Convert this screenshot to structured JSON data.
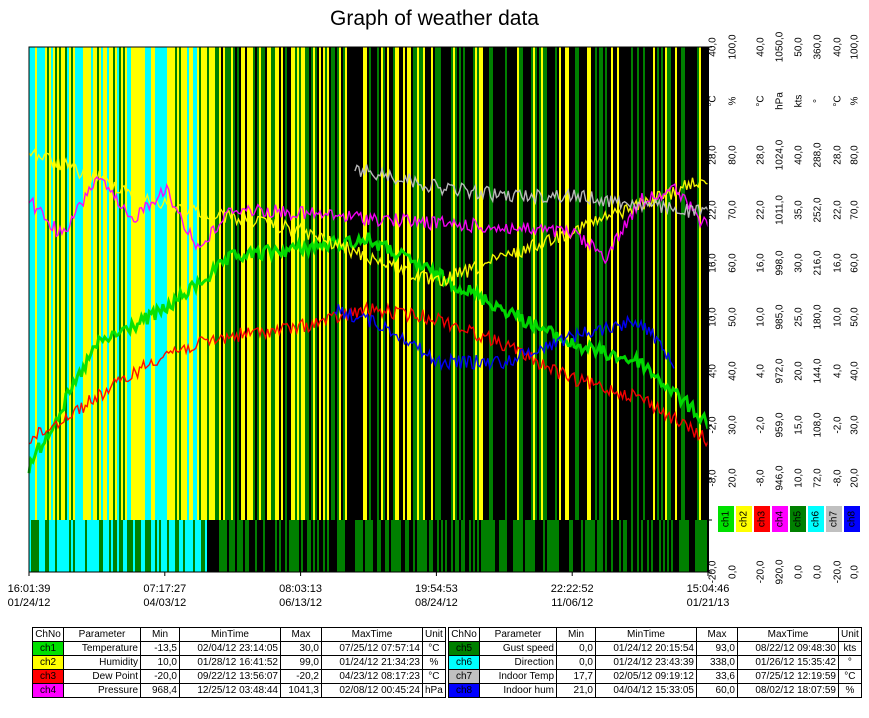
{
  "chart_data": {
    "type": "line",
    "title": "Graph of weather data",
    "x_ticks": [
      {
        "time": "16:01:39",
        "date": "01/24/12"
      },
      {
        "time": "07:17:27",
        "date": "04/03/12"
      },
      {
        "time": "08:03:13",
        "date": "06/13/12"
      },
      {
        "time": "19:54:53",
        "date": "08/24/12"
      },
      {
        "time": "22:22:52",
        "date": "11/06/12"
      },
      {
        "time": "15:04:46",
        "date": "01/21/13"
      }
    ],
    "axes": [
      {
        "unit": "°C",
        "ticks": [
          "40,0",
          "28,0",
          "22,0",
          "16,0",
          "10,0",
          "4,0",
          "-2,0",
          "-8,0",
          "",
          "-20,0"
        ]
      },
      {
        "unit": "%",
        "ticks": [
          "100,0",
          "80,0",
          "70,0",
          "60,0",
          "50,0",
          "40,0",
          "30,0",
          "20,0",
          "",
          "0,0"
        ]
      },
      {
        "unit": "°C",
        "ticks": [
          "40,0",
          "28,0",
          "22,0",
          "16,0",
          "10,0",
          "4,0",
          "-2,0",
          "-8,0",
          "",
          "-20,0"
        ]
      },
      {
        "unit": "hPa",
        "ticks": [
          "1050,0",
          "1024,0",
          "1011,0",
          "998,0",
          "985,0",
          "972,0",
          "959,0",
          "946,0",
          "",
          "920,0"
        ]
      },
      {
        "unit": "kts",
        "ticks": [
          "50,0",
          "40,0",
          "35,0",
          "30,0",
          "25,0",
          "20,0",
          "15,0",
          "10,0",
          "",
          "0,0"
        ]
      },
      {
        "unit": "°",
        "ticks": [
          "360,0",
          "288,0",
          "252,0",
          "216,0",
          "180,0",
          "144,0",
          "108,0",
          "72,0",
          "",
          "0,0"
        ]
      },
      {
        "unit": "°C",
        "ticks": [
          "40,0",
          "28,0",
          "22,0",
          "16,0",
          "10,0",
          "4,0",
          "-2,0",
          "-8,0",
          "",
          "-20,0"
        ]
      },
      {
        "unit": "%",
        "ticks": [
          "100,0",
          "80,0",
          "70,0",
          "60,0",
          "50,0",
          "40,0",
          "30,0",
          "20,0",
          "",
          "0,0"
        ]
      }
    ],
    "channel_tags": [
      {
        "label": "ch1",
        "color": "#00e000"
      },
      {
        "label": "ch2",
        "color": "#ffff00"
      },
      {
        "label": "ch3",
        "color": "#ff0000"
      },
      {
        "label": "ch4",
        "color": "#ff00ff"
      },
      {
        "label": "ch5",
        "color": "#008000"
      },
      {
        "label": "ch6",
        "color": "#00ffff"
      },
      {
        "label": "ch7",
        "color": "#c0c0c0"
      },
      {
        "label": "ch8",
        "color": "#0000ff"
      }
    ],
    "series": [
      {
        "name": "Temperature",
        "color": "#00e000",
        "approx_x_frac": [
          0,
          0.1,
          0.2,
          0.3,
          0.4,
          0.5,
          0.6,
          0.7,
          0.8,
          0.9,
          1
        ],
        "values": [
          -8,
          6,
          10,
          16,
          17,
          18,
          14,
          10,
          6,
          4,
          -3
        ]
      },
      {
        "name": "Humidity",
        "color": "#ffff00",
        "approx_x_frac": [
          0,
          0.2,
          0.4,
          0.6,
          0.8,
          1
        ],
        "values": [
          80,
          70,
          65,
          55,
          65,
          75
        ]
      },
      {
        "name": "Dew Point",
        "color": "#ff0000",
        "approx_x_frac": [
          0,
          0.1,
          0.2,
          0.3,
          0.4,
          0.5,
          0.6,
          0.7,
          0.8,
          0.9,
          1
        ],
        "values": [
          -5,
          0,
          5,
          7,
          8,
          10,
          9,
          6,
          2,
          0,
          -5
        ]
      },
      {
        "name": "Pressure",
        "color": "#ff00ff",
        "approx_x_frac": [
          0,
          0.05,
          0.1,
          0.15,
          0.2,
          0.25,
          0.3,
          0.8,
          0.85,
          0.9,
          0.95,
          1
        ],
        "values": [
          1012,
          1003,
          1018,
          1007,
          1015,
          1000,
          1010,
          1004,
          998,
          1012,
          1015,
          1005
        ]
      },
      {
        "name": "Indoor Temp",
        "color": "#c0c0c0",
        "approx_x_frac": [
          0.48,
          0.55,
          0.6,
          0.7,
          0.8,
          0.9,
          1
        ],
        "values": [
          26,
          25,
          24,
          23,
          23,
          22,
          21
        ]
      },
      {
        "name": "Indoor hum",
        "color": "#0000ff",
        "approx_x_frac": [
          0.45,
          0.5,
          0.55,
          0.6,
          0.7,
          0.8,
          0.9,
          0.95
        ],
        "values": [
          50,
          48,
          45,
          40,
          40,
          45,
          48,
          40
        ]
      }
    ]
  },
  "table_left": {
    "headers": [
      "ChNo",
      "Parameter",
      "Min",
      "MinTime",
      "Max",
      "MaxTime",
      "Unit"
    ],
    "rows": [
      {
        "ch": "ch1",
        "color": "#00e000",
        "param": "Temperature",
        "min": "-13,5",
        "mintime": "02/04/12 23:14:05",
        "max": "30,0",
        "maxtime": "07/25/12 07:57:14",
        "unit": "°C"
      },
      {
        "ch": "ch2",
        "color": "#ffff00",
        "param": "Humidity",
        "min": "10,0",
        "mintime": "01/28/12 16:41:52",
        "max": "99,0",
        "maxtime": "01/24/12 21:34:23",
        "unit": "%"
      },
      {
        "ch": "ch3",
        "color": "#ff0000",
        "param": "Dew Point",
        "min": "-20,0",
        "mintime": "09/22/12 13:56:07",
        "max": "-20,2",
        "maxtime": "04/23/12 08:17:23",
        "unit": "°C"
      },
      {
        "ch": "ch4",
        "color": "#ff00ff",
        "param": "Pressure",
        "min": "968,4",
        "mintime": "12/25/12 03:48:44",
        "max": "1041,3",
        "maxtime": "02/08/12 00:45:24",
        "unit": "hPa"
      }
    ]
  },
  "table_right": {
    "headers": [
      "ChNo",
      "Parameter",
      "Min",
      "MinTime",
      "Max",
      "MaxTime",
      "Unit"
    ],
    "rows": [
      {
        "ch": "ch5",
        "color": "#008000",
        "param": "Gust speed",
        "min": "0,0",
        "mintime": "01/24/12 20:15:54",
        "max": "93,0",
        "maxtime": "08/22/12 09:48:30",
        "unit": "kts"
      },
      {
        "ch": "ch6",
        "color": "#00ffff",
        "param": "Direction",
        "min": "0,0",
        "mintime": "01/24/12 23:43:39",
        "max": "338,0",
        "maxtime": "01/26/12 15:35:42",
        "unit": "°"
      },
      {
        "ch": "ch7",
        "color": "#c0c0c0",
        "param": "Indoor Temp",
        "min": "17,7",
        "mintime": "02/05/12 09:19:12",
        "max": "33,6",
        "maxtime": "07/25/12 12:19:59",
        "unit": "°C"
      },
      {
        "ch": "ch8",
        "color": "#0000ff",
        "param": "Indoor hum",
        "min": "21,0",
        "mintime": "04/04/12 15:33:05",
        "max": "60,0",
        "maxtime": "08/02/12 18:07:59",
        "unit": "%"
      }
    ]
  }
}
